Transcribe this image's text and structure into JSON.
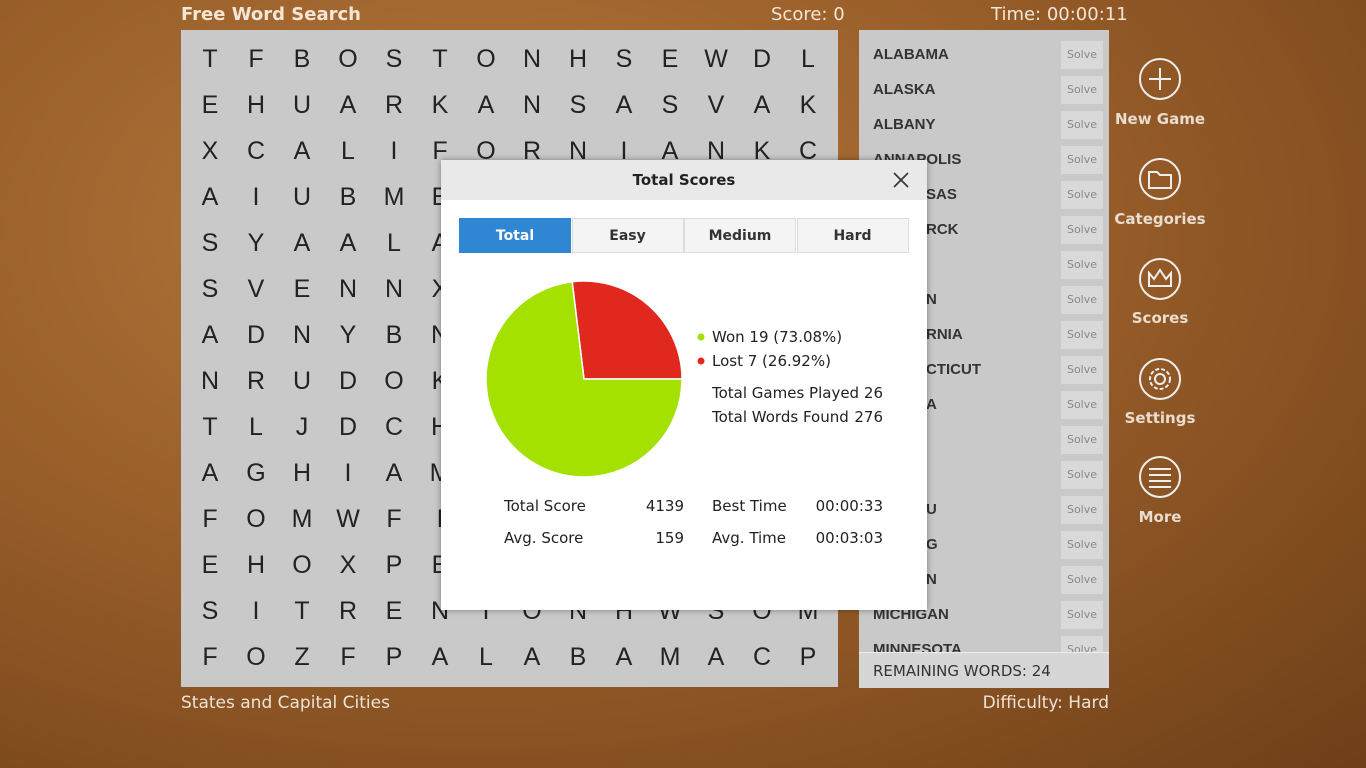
{
  "header": {
    "title": "Free Word Search",
    "score": "Score: 0",
    "time": "Time: 00:00:11"
  },
  "grid": [
    [
      "T",
      "F",
      "B",
      "O",
      "S",
      "T",
      "O",
      "N",
      "H",
      "S",
      "E",
      "W",
      "D",
      "L"
    ],
    [
      "E",
      "H",
      "U",
      "A",
      "R",
      "K",
      "A",
      "N",
      "S",
      "A",
      "S",
      "V",
      "A",
      "K"
    ],
    [
      "X",
      "C",
      "A",
      "L",
      "I",
      "F",
      "O",
      "R",
      "N",
      "I",
      "A",
      "N",
      "K",
      "C"
    ],
    [
      "A",
      "I",
      "U",
      "B",
      "M",
      "E",
      null,
      null,
      null,
      null,
      null,
      null,
      null,
      null
    ],
    [
      "S",
      "Y",
      "A",
      "A",
      "L",
      "A",
      null,
      null,
      null,
      null,
      null,
      null,
      null,
      null
    ],
    [
      "S",
      "V",
      "E",
      "N",
      "N",
      "X",
      null,
      null,
      null,
      null,
      null,
      null,
      null,
      null
    ],
    [
      "A",
      "D",
      "N",
      "Y",
      "B",
      "N",
      null,
      null,
      null,
      null,
      null,
      null,
      null,
      null
    ],
    [
      "N",
      "R",
      "U",
      "D",
      "O",
      "K",
      null,
      null,
      null,
      null,
      null,
      null,
      null,
      null
    ],
    [
      "T",
      "L",
      "J",
      "D",
      "C",
      "H",
      null,
      null,
      null,
      null,
      null,
      null,
      null,
      null
    ],
    [
      "A",
      "G",
      "H",
      "I",
      "A",
      "M",
      null,
      null,
      null,
      null,
      null,
      null,
      null,
      null
    ],
    [
      "F",
      "O",
      "M",
      "W",
      "F",
      "I",
      null,
      null,
      null,
      null,
      null,
      null,
      null,
      null
    ],
    [
      "E",
      "H",
      "O",
      "X",
      "P",
      "E",
      null,
      null,
      null,
      null,
      null,
      null,
      null,
      null
    ],
    [
      "S",
      "I",
      "T",
      "R",
      "E",
      "N",
      "T",
      "O",
      "N",
      "H",
      "W",
      "S",
      "O",
      "M"
    ],
    [
      "F",
      "O",
      "Z",
      "F",
      "P",
      "A",
      "L",
      "A",
      "B",
      "A",
      "M",
      "A",
      "C",
      "P"
    ]
  ],
  "words": {
    "items": [
      "ALABAMA",
      "ALASKA",
      "ALBANY",
      "ANNAPOLIS",
      "SAS",
      "RCK",
      null,
      "N",
      "RNIA",
      "CTICUT",
      "A",
      null,
      null,
      "U",
      "G",
      "N",
      "MICHIGAN",
      "MINNESOTA"
    ],
    "solve": [
      "Solve",
      "Solve",
      "Solve",
      "Solve",
      "Solve",
      "Solve",
      "Solve",
      "Solve",
      "Solve",
      "Solve",
      "Solve",
      "Solve",
      "Solve",
      "Solve",
      "Solve",
      "Solve",
      "Solve",
      "Solve"
    ],
    "remaining": "REMAINING WORDS: 24"
  },
  "footer": {
    "category": "States and Capital Cities",
    "difficulty": "Difficulty: Hard"
  },
  "sidebar": [
    "New Game",
    "Categories",
    "Scores",
    "Settings",
    "More"
  ],
  "dialog": {
    "title": "Total Scores",
    "tabs": [
      "Total",
      "Easy",
      "Medium",
      "Hard"
    ],
    "chart": {
      "type": "pie",
      "labels": [
        "Won 19 (73.08%)",
        "Lost 7 (26.92%)"
      ],
      "values": [
        19,
        7
      ],
      "colors": [
        "#a4e000",
        "#e0281e"
      ]
    },
    "stats": [
      {
        "label": "Total Games Played",
        "value": 26
      },
      {
        "label": "Total Words Found",
        "value": 276
      },
      {
        "label": "Total Score",
        "value": 4139
      },
      {
        "label": "Avg. Score",
        "value": 159
      },
      {
        "label": "Best Time",
        "value": "00:00:33"
      },
      {
        "label": "Avg. Time",
        "value": "00:03:03"
      }
    ]
  }
}
